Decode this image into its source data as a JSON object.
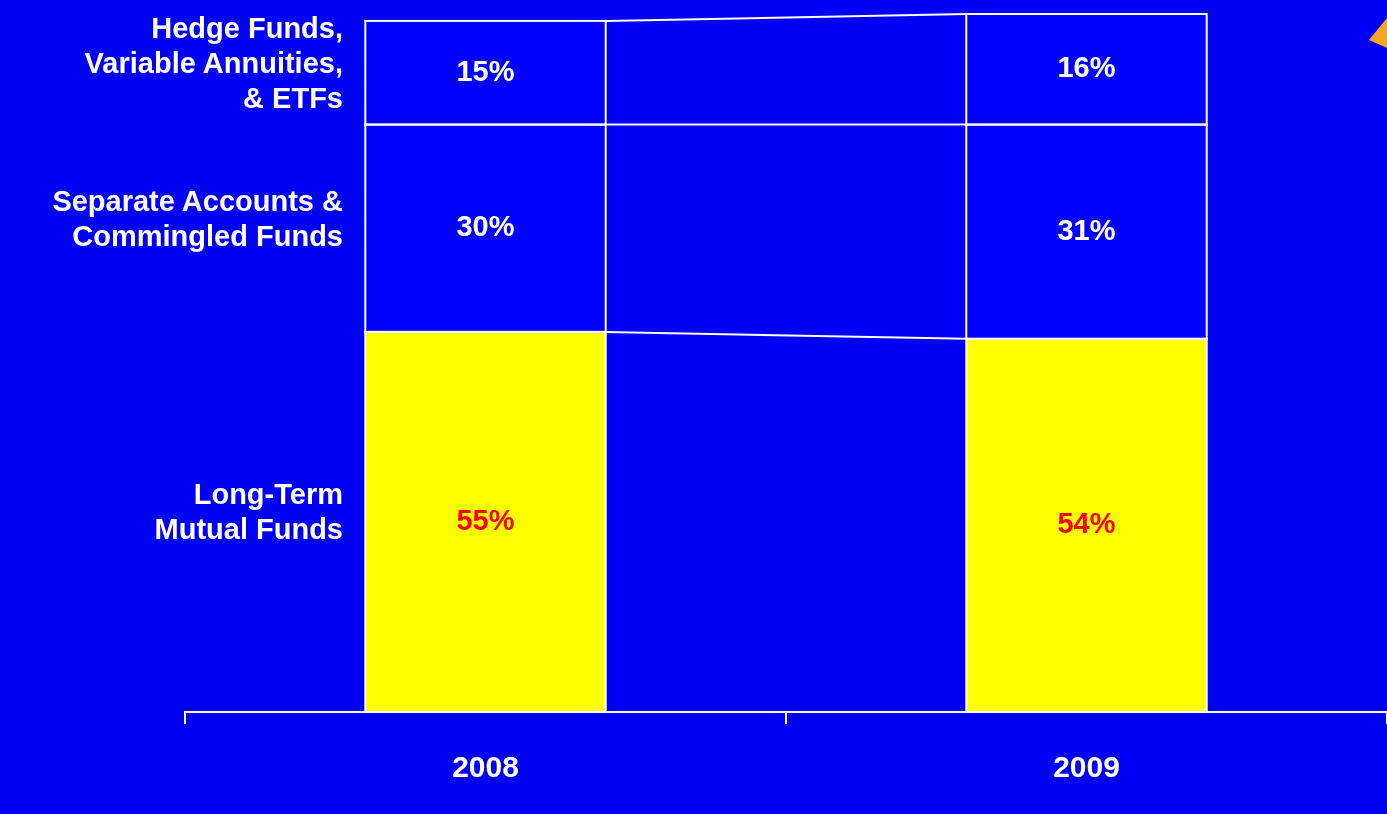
{
  "chart_data": {
    "type": "bar",
    "stacked": true,
    "categories": [
      "2008",
      "2009"
    ],
    "series": [
      {
        "name": "Long-Term\nMutual Funds",
        "color": "#ffff00",
        "values": [
          55,
          54
        ],
        "value_labels": [
          "55%",
          "54%"
        ]
      },
      {
        "name": "Separate Accounts &\nCommingled Funds",
        "color": "#0000ff",
        "values": [
          30,
          31
        ],
        "value_labels": [
          "30%",
          "31%"
        ]
      },
      {
        "name": "Hedge Funds,\nVariable Annuities,\n& ETFs",
        "color": "#0000ff",
        "values": [
          15,
          16
        ],
        "value_labels": [
          "15%",
          "16%"
        ]
      }
    ],
    "tick_labels": "x",
    "legend": false,
    "grid": false
  }
}
